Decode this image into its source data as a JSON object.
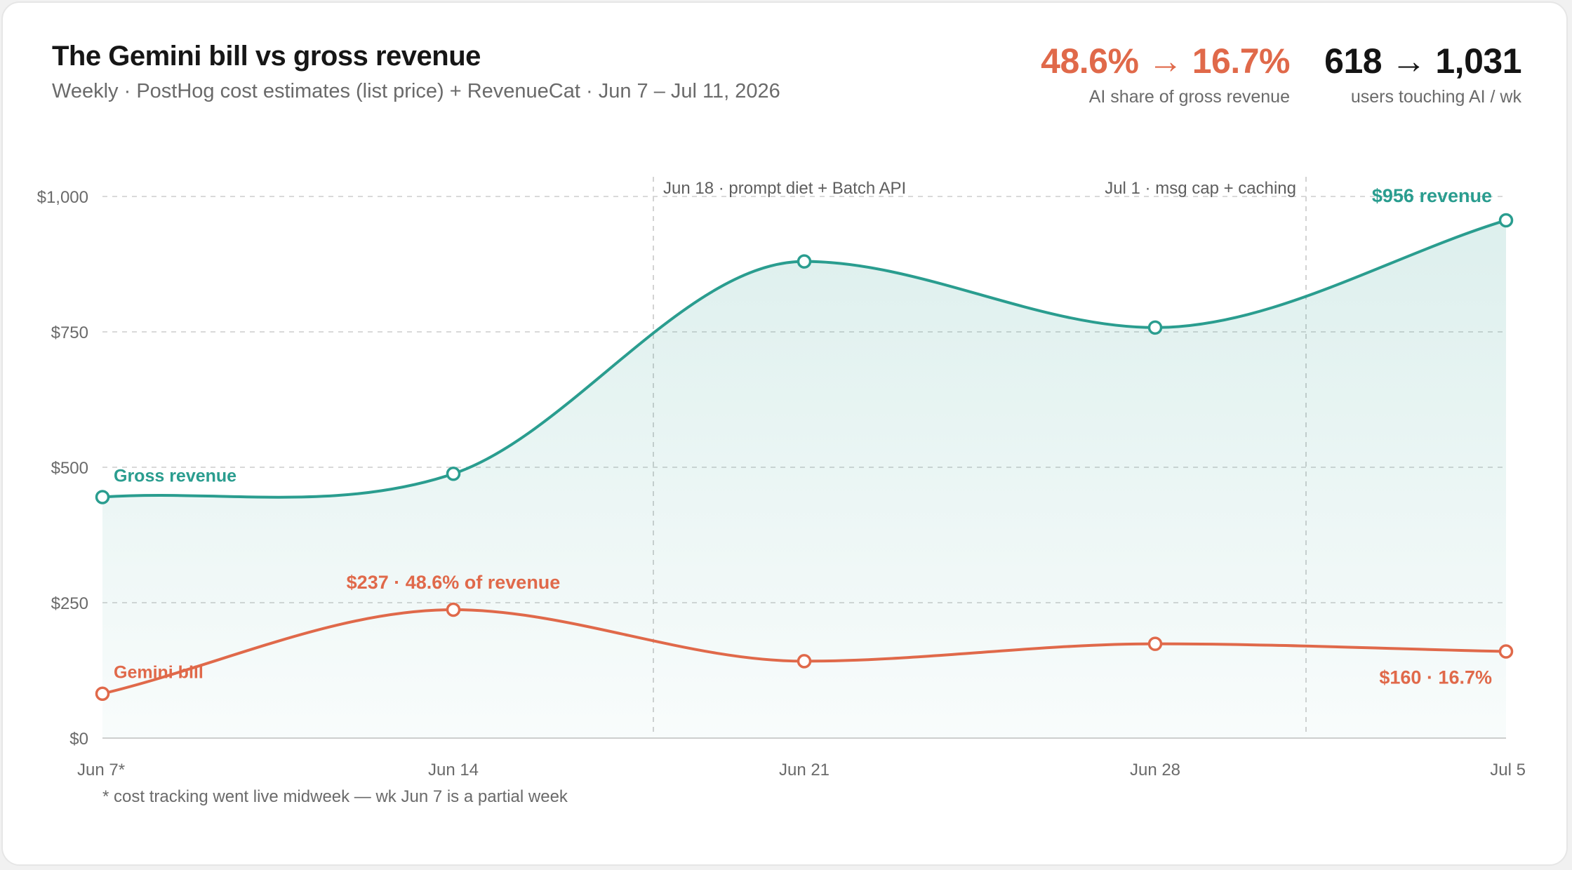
{
  "header": {
    "title": "The Gemini bill vs gross revenue",
    "subtitle": "Weekly · PostHog cost estimates (list price) + RevenueCat · Jun 7 – Jul 11, 2026"
  },
  "stats": [
    {
      "value": "48.6% → 16.7%",
      "label": "AI share of gross revenue",
      "color": "#e0694a"
    },
    {
      "value": "618 → 1,031",
      "label": "users touching AI / wk",
      "color": "#141414"
    }
  ],
  "footnote": "* cost tracking went live midweek — wk Jun 7 is a partial week",
  "colors": {
    "revenue": "#2a9d8f",
    "gemini": "#e0694a",
    "grid": "#d9d9d9",
    "axis_text": "#6a6a6a"
  },
  "chart_data": {
    "type": "line",
    "categories": [
      "Jun 7*",
      "Jun 14",
      "Jun 21",
      "Jun 28",
      "Jul 5"
    ],
    "ylim": [
      0,
      1000
    ],
    "y_ticks": [
      {
        "value": 0,
        "label": "$0"
      },
      {
        "value": 250,
        "label": "$250"
      },
      {
        "value": 500,
        "label": "$500"
      },
      {
        "value": 750,
        "label": "$750"
      },
      {
        "value": 1000,
        "label": "$1,000"
      }
    ],
    "grid": "horizontal dashed",
    "series": [
      {
        "name": "Gross revenue",
        "color": "#2a9d8f",
        "filled": true,
        "values": [
          445,
          488,
          880,
          758,
          956
        ]
      },
      {
        "name": "Gemini bill",
        "color": "#e0694a",
        "filled": false,
        "values": [
          82,
          237,
          142,
          174,
          160
        ]
      }
    ],
    "annotations": [
      {
        "text": "Jun 18 · prompt diet + Batch API",
        "x": 1.57,
        "type": "vertical-line"
      },
      {
        "text": "Jul 1 · msg cap + caching",
        "x": 3.43,
        "type": "vertical-line"
      },
      {
        "text": "$956 revenue",
        "series": "Gross revenue",
        "index": 4
      },
      {
        "text": "$237 · 48.6% of revenue",
        "series": "Gemini bill",
        "index": 1
      },
      {
        "text": "$160 · 16.7%",
        "series": "Gemini bill",
        "index": 4
      }
    ]
  }
}
